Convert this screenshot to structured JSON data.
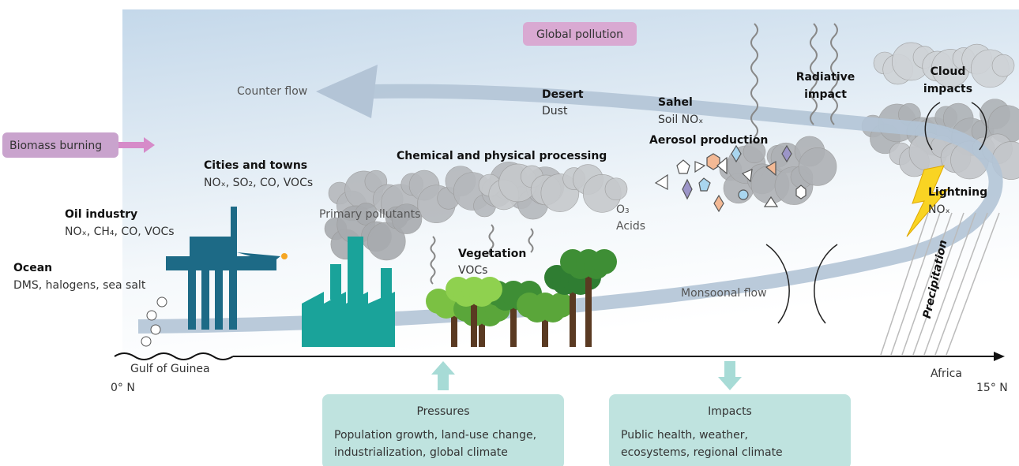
{
  "banner": "Global pollution",
  "biomass": "Biomass burning",
  "flows": {
    "counter": "Counter flow",
    "monsoonal": "Monsoonal flow"
  },
  "sources": [
    {
      "name": "Ocean",
      "detail": "DMS, halogens, sea salt"
    },
    {
      "name": "Oil industry",
      "detail": "NOₓ, CH₄, CO, VOCs"
    },
    {
      "name": "Cities and towns",
      "detail": "NOₓ, SO₂, CO, VOCs"
    },
    {
      "name": "Vegetation",
      "detail": "VOCs"
    },
    {
      "name": "Desert",
      "detail": "Dust"
    },
    {
      "name": "Sahel",
      "detail": "Soil NOₓ"
    },
    {
      "name": "Lightning",
      "detail": "NOₓ"
    }
  ],
  "processes": {
    "chemical": "Chemical and physical processing",
    "primary": "Primary pollutants",
    "ozone": "O₃",
    "acids": "Acids",
    "aerosol": "Aerosol production",
    "radiative": [
      "Radiative",
      "impact"
    ],
    "cloud": [
      "Cloud",
      "impacts"
    ],
    "precipitation": "Precipitation"
  },
  "axis": {
    "start": "0° N",
    "end": "15° N",
    "left_place": "Gulf of Guinea",
    "right_place": "Africa"
  },
  "boxes": [
    {
      "title": "Pressures",
      "lines": [
        "Population growth, land-use change,",
        "industrialization, global climate"
      ]
    },
    {
      "title": "Impacts",
      "lines": [
        "Public health, weather,",
        "ecosystems, regional climate"
      ]
    }
  ]
}
